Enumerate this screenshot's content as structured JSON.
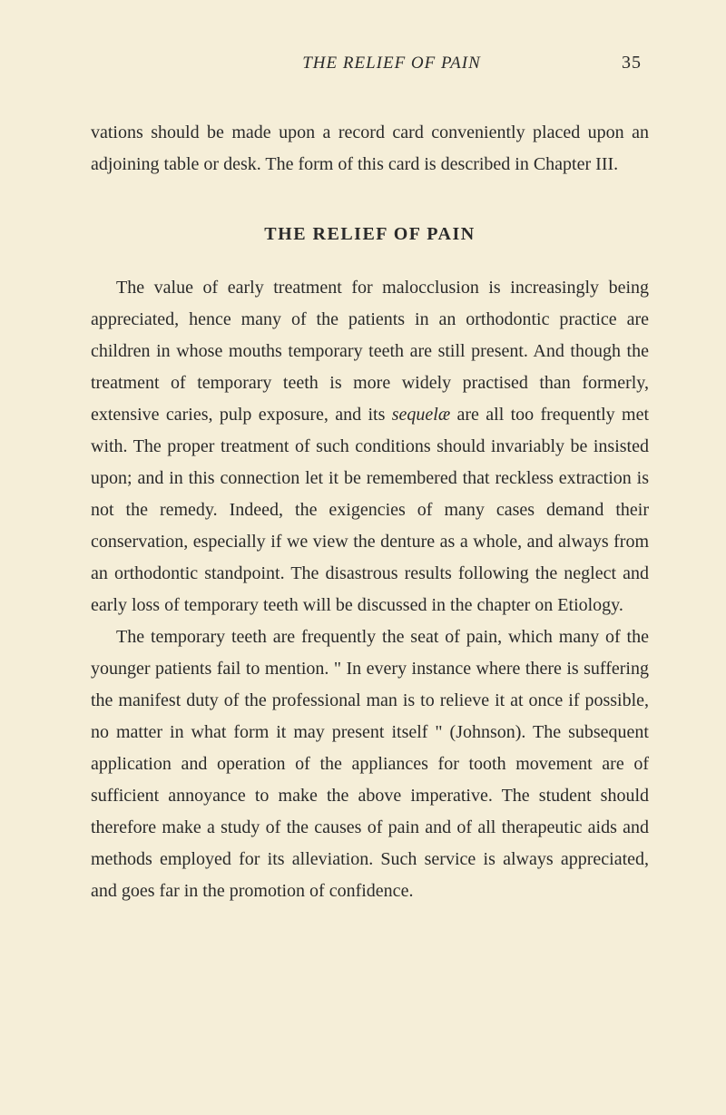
{
  "header": {
    "running_title": "THE RELIEF OF PAIN",
    "page_number": "35"
  },
  "para1": "vations should be made upon a record card conveniently placed upon an adjoining table or desk. The form of this card is described in Chapter III.",
  "section_title": "THE RELIEF OF PAIN",
  "para2_a": "The value of early treatment for malocclusion is increasingly being appreciated, hence many of the patients in an orthodontic practice are children in whose mouths temporary teeth are still present. And though the treatment of temporary teeth is more widely practised than formerly, extensive caries, pulp exposure, and its ",
  "para2_italic": "sequelæ",
  "para2_b": " are all too frequently met with. The proper treatment of such conditions should invariably be insisted upon; and in this connection let it be remembered that reckless extraction is not the remedy. Indeed, the exigencies of many cases demand their conservation, especially if we view the denture as a whole, and always from an orthodontic standpoint. The disastrous results following the neglect and early loss of temporary teeth will be discussed in the chapter on Etiology.",
  "para3": "The temporary teeth are frequently the seat of pain, which many of the younger patients fail to mention. \" In every instance where there is suffering the manifest duty of the professional man is to relieve it at once if possible, no matter in what form it may present itself \" (Johnson). The subsequent application and operation of the appliances for tooth movement are of sufficient annoyance to make the above imperative. The student should therefore make a study of the causes of pain and of all therapeutic aids and methods employed for its alleviation. Such service is always appreciated, and goes far in the promotion of confidence.",
  "colors": {
    "background": "#f5eed8",
    "text": "#2a2a2a"
  },
  "typography": {
    "body_fontsize": 20,
    "line_height": 1.75,
    "font_family": "Georgia, Times New Roman, serif"
  }
}
